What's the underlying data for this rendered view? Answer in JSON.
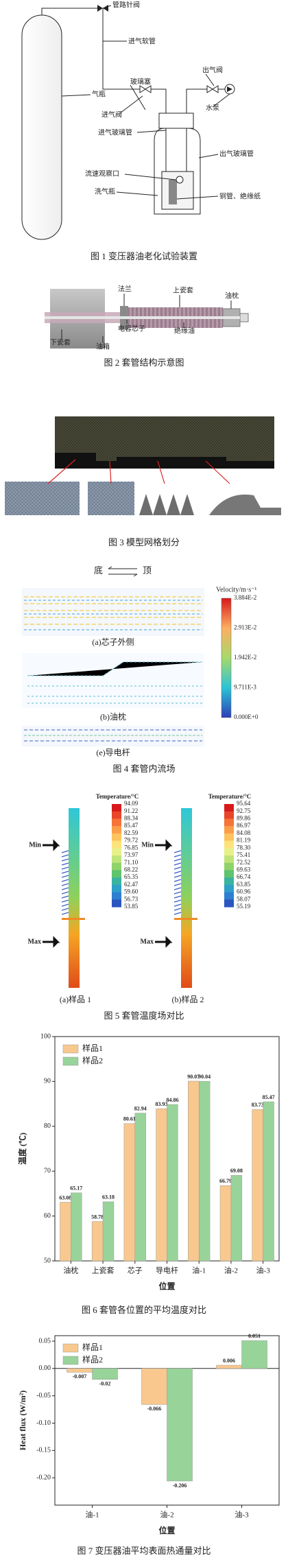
{
  "figure1": {
    "labels": [
      "管路针阀",
      "进气软管",
      "玻璃塞",
      "出气阀",
      "气瓶",
      "进气阀",
      "水泵",
      "进气玻璃管",
      "出气玻璃管",
      "流速观察口",
      "洗气瓶",
      "铜管、绝缘纸"
    ],
    "caption": "图 1  变压器油老化试验装置"
  },
  "figure2": {
    "labels": [
      "法兰",
      "上瓷套",
      "油枕",
      "下瓷套",
      "电容芯子",
      "绝缘油",
      "油箱"
    ],
    "caption": "图 2  套管结构示意图"
  },
  "figure3": {
    "caption": "图 3  模型网格划分"
  },
  "figure4": {
    "direction": [
      "底",
      "顶"
    ],
    "colorbar": {
      "title": "Velocity/m·s⁻¹",
      "labels": [
        "3.884E-2",
        "2.913E-2",
        "1.942E-2",
        "9.711E-3",
        "0.000E+0"
      ]
    },
    "panels": [
      "(a)芯子外侧",
      "(b)油枕",
      "(e)导电杆"
    ],
    "caption": "图 4  套管内流场"
  },
  "figure5": {
    "panels": [
      {
        "colorbar_title": "Temperature/°C",
        "labels": [
          "94.09",
          "91.22",
          "88.34",
          "85.47",
          "82.59",
          "79.72",
          "76.85",
          "73.97",
          "71.10",
          "68.22",
          "65.35",
          "62.47",
          "59.60",
          "56.73",
          "53.85"
        ],
        "min": "Min",
        "max": "Max",
        "label": "(a)样品 1"
      },
      {
        "colorbar_title": "Temperature/°C",
        "labels": [
          "95.64",
          "92.75",
          "89.86",
          "86.97",
          "84.08",
          "81.19",
          "78.30",
          "75.41",
          "72.52",
          "69.63",
          "66.74",
          "63.85",
          "60.96",
          "58.07",
          "55.19"
        ],
        "min": "Min",
        "max": "Max",
        "label": "(b)样品 2"
      }
    ],
    "caption": "图 5  套管温度场对比"
  },
  "chart_data": [
    {
      "type": "bar",
      "title": "图 6  套管各位置的平均温度对比",
      "xlabel": "位置",
      "ylabel": "温度 (℃)",
      "categories": [
        "油枕",
        "上瓷套",
        "芯子",
        "导电杆",
        "油-1",
        "油-2",
        "油-3"
      ],
      "series": [
        {
          "name": "样品1",
          "color": "#f8c88e",
          "values": [
            63.08,
            58.78,
            80.61,
            83.93,
            90.07,
            66.79,
            83.73
          ]
        },
        {
          "name": "样品2",
          "color": "#98d49a",
          "values": [
            65.17,
            63.18,
            82.94,
            84.86,
            90.04,
            69.08,
            85.47
          ]
        }
      ],
      "ylim": [
        50,
        100
      ],
      "yticks": [
        50,
        60,
        70,
        80,
        90,
        100
      ],
      "legend": "upper-left"
    },
    {
      "type": "bar",
      "title": "图 7  变压器油平均表面热通量对比",
      "xlabel": "位置",
      "ylabel": "Heat flux (W/m²)",
      "categories": [
        "油-1",
        "油-2",
        "油-3"
      ],
      "series": [
        {
          "name": "样品1",
          "color": "#f8c88e",
          "values": [
            -0.007,
            -0.066,
            0.006
          ]
        },
        {
          "name": "样品2",
          "color": "#98d49a",
          "values": [
            -0.02,
            -0.206,
            0.051
          ]
        }
      ],
      "ylim": [
        -0.25,
        0.06
      ],
      "yticks": [
        {
          "value": 0.05,
          "label": "0.05"
        },
        {
          "value": 0,
          "label": "0.00"
        },
        {
          "value": -0.05,
          "label": "-0.05"
        },
        {
          "value": -0.1,
          "label": "-0.10"
        },
        {
          "value": -0.15,
          "label": "-0.15"
        },
        {
          "value": -0.2,
          "label": "-0.20"
        }
      ],
      "legend": "upper-left"
    }
  ]
}
